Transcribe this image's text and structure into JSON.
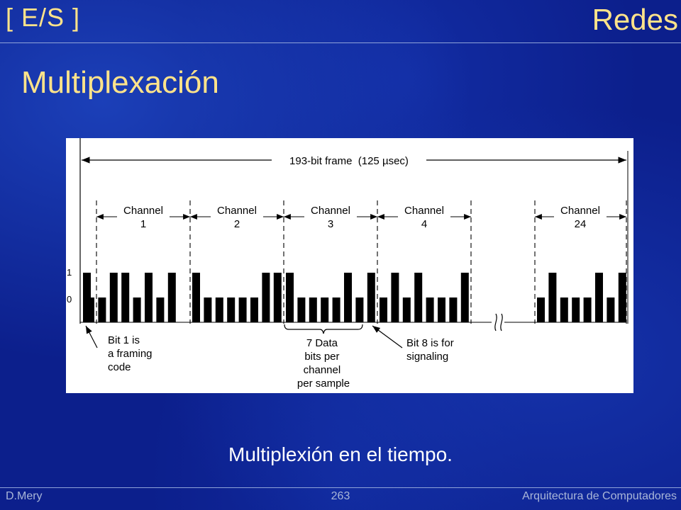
{
  "header": {
    "section": "[ E/S ]",
    "topic": "Redes"
  },
  "slide": {
    "title": "Multiplexación",
    "caption": "Multiplexión en el tiempo."
  },
  "diagram": {
    "frame_label": "193-bit frame  (125 µsec)",
    "channels": [
      {
        "word": "Channel",
        "number": "1",
        "bits": [
          0,
          0,
          1,
          1,
          0,
          1,
          0,
          1
        ]
      },
      {
        "word": "Channel",
        "number": "2",
        "bits": [
          1,
          0,
          0,
          0,
          0,
          0,
          1,
          1
        ]
      },
      {
        "word": "Channel",
        "number": "3",
        "bits": [
          1,
          0,
          0,
          0,
          0,
          1,
          0,
          1
        ]
      },
      {
        "word": "Channel",
        "number": "4",
        "bits": [
          0,
          1,
          0,
          1,
          0,
          0,
          0,
          1
        ]
      },
      {
        "word": "Channel",
        "number": "24",
        "bits": [
          0,
          1,
          0,
          0,
          0,
          1,
          0,
          1
        ]
      }
    ],
    "level_high": "1",
    "level_low": "0",
    "notes": {
      "framing": [
        "Bit 1 is",
        "a framing",
        "code"
      ],
      "data": [
        "7 Data",
        "bits per",
        "channel",
        "per sample"
      ],
      "signaling": [
        "Bit 8 is for",
        "signaling"
      ]
    }
  },
  "footer": {
    "author": "D.Mery",
    "page": "263",
    "course": "Arquitectura de Computadores"
  }
}
